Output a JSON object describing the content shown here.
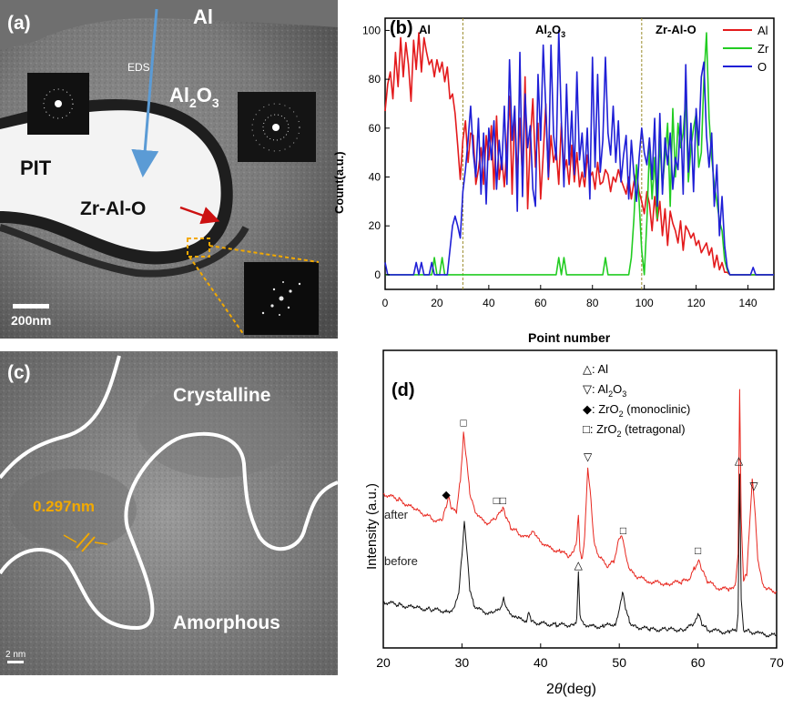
{
  "panels": {
    "a": {
      "tag": "(a)",
      "labels": {
        "al": "Al",
        "al2o3_main": "Al",
        "al2o3_sub": "2",
        "al2o3_o": "O",
        "al2o3_sub2": "3",
        "pit": "PIT",
        "zr": "Zr-Al-O",
        "eds": "EDS"
      },
      "scale_bar": "200nm"
    },
    "c": {
      "tag": "(c)",
      "crystalline": "Crystalline",
      "amorphous": "Amorphous",
      "spacing": "0.297nm",
      "scale_bar": "2 nm"
    }
  },
  "colors": {
    "al": "#e31a1c",
    "zr": "#22cc22",
    "o": "#1f1fd6",
    "after": "#e8271f",
    "before": "#111111",
    "eds_arrow": "#5b9bd5",
    "accent_orange": "#f2a900"
  },
  "chart_data": [
    {
      "id": "b",
      "tag": "(b)",
      "type": "line",
      "xlabel": "Point number",
      "ylabel": "Count(a.u.)",
      "xlim": [
        0,
        150
      ],
      "ylim": [
        -6,
        105
      ],
      "xticks": [
        0,
        20,
        40,
        60,
        80,
        100,
        120,
        140
      ],
      "yticks": [
        0,
        20,
        40,
        60,
        80,
        100
      ],
      "region_dividers": [
        30,
        99
      ],
      "region_labels": {
        "al": "Al",
        "al2o3_main": "Al",
        "al2o3_sub": "2",
        "al2o3_o": "O",
        "al2o3_sub2": "3",
        "zr": "Zr-Al-O"
      },
      "legend": [
        "Al",
        "Zr",
        "O"
      ],
      "legend_position": "top-right",
      "series": [
        {
          "name": "Al",
          "values": [
            67,
            78,
            83,
            72,
            91,
            77,
            97,
            81,
            95,
            86,
            71,
            96,
            84,
            99,
            83,
            97,
            91,
            86,
            88,
            81,
            88,
            83,
            87,
            79,
            85,
            72,
            74,
            66,
            53,
            39,
            55,
            63,
            46,
            58,
            57,
            37,
            43,
            52,
            37,
            57,
            47,
            61,
            35,
            65,
            39,
            48,
            36,
            53,
            73,
            33,
            68,
            40,
            64,
            39,
            81,
            27,
            55,
            72,
            44,
            62,
            31,
            49,
            70,
            39,
            57,
            46,
            51,
            37,
            62,
            42,
            47,
            37,
            53,
            38,
            50,
            36,
            42,
            36,
            49,
            40,
            42,
            35,
            46,
            37,
            38,
            43,
            41,
            34,
            40,
            38,
            43,
            39,
            36,
            33,
            40,
            31,
            38,
            42,
            34,
            30,
            25,
            34,
            29,
            18,
            32,
            22,
            30,
            16,
            27,
            12,
            26,
            21,
            18,
            13,
            22,
            10,
            20,
            18,
            15,
            17,
            12,
            14,
            9,
            11,
            13,
            8,
            11,
            3,
            8,
            2,
            5,
            1,
            1,
            0,
            0,
            0,
            0,
            0,
            0,
            0,
            0,
            0,
            0,
            0,
            0,
            0,
            0,
            0,
            0,
            0,
            0
          ]
        },
        {
          "name": "Zr",
          "values": [
            0,
            0,
            0,
            0,
            0,
            0,
            0,
            0,
            0,
            0,
            0,
            0,
            0,
            0,
            0,
            0,
            0,
            0,
            0,
            7,
            0,
            0,
            7,
            0,
            0,
            0,
            0,
            0,
            0,
            0,
            0,
            0,
            0,
            0,
            0,
            0,
            0,
            0,
            0,
            0,
            0,
            0,
            0,
            0,
            0,
            0,
            0,
            0,
            0,
            0,
            0,
            0,
            0,
            0,
            0,
            0,
            0,
            0,
            0,
            0,
            0,
            0,
            0,
            0,
            0,
            0,
            0,
            7,
            0,
            7,
            0,
            0,
            0,
            0,
            0,
            0,
            0,
            0,
            0,
            0,
            0,
            0,
            0,
            0,
            0,
            7,
            0,
            0,
            0,
            0,
            0,
            0,
            0,
            0,
            0,
            7,
            23,
            45,
            30,
            10,
            0,
            22,
            52,
            31,
            48,
            23,
            55,
            36,
            48,
            62,
            28,
            68,
            40,
            62,
            52,
            58,
            72,
            38,
            52,
            60,
            66,
            44,
            50,
            80,
            99,
            64,
            48,
            37,
            30,
            22,
            18,
            6,
            2,
            0,
            0,
            0,
            0,
            0,
            0,
            0,
            0,
            0,
            0,
            0,
            0,
            0,
            0,
            0,
            0,
            0,
            0
          ]
        },
        {
          "name": "O",
          "values": [
            5,
            0,
            0,
            0,
            0,
            0,
            0,
            0,
            0,
            0,
            0,
            0,
            5,
            0,
            5,
            0,
            0,
            0,
            5,
            0,
            0,
            0,
            0,
            0,
            0,
            10,
            20,
            24,
            20,
            15,
            34,
            43,
            55,
            69,
            50,
            40,
            64,
            33,
            58,
            29,
            60,
            47,
            63,
            35,
            55,
            43,
            69,
            37,
            88,
            55,
            69,
            26,
            91,
            32,
            74,
            52,
            61,
            35,
            28,
            82,
            55,
            94,
            68,
            40,
            94,
            57,
            47,
            100,
            63,
            36,
            78,
            45,
            67,
            41,
            83,
            47,
            58,
            40,
            60,
            31,
            89,
            44,
            82,
            42,
            55,
            89,
            58,
            49,
            69,
            46,
            63,
            38,
            49,
            57,
            31,
            55,
            41,
            30,
            48,
            60,
            50,
            45,
            56,
            39,
            64,
            28,
            66,
            33,
            56,
            45,
            58,
            35,
            48,
            43,
            65,
            33,
            86,
            42,
            62,
            34,
            68,
            53,
            81,
            87,
            57,
            44,
            58,
            28,
            45,
            16,
            32,
            12,
            3,
            0,
            0,
            0,
            0,
            0,
            0,
            0,
            0,
            0,
            3,
            0,
            0,
            0,
            0,
            0,
            0,
            0,
            0
          ]
        }
      ]
    },
    {
      "id": "d",
      "tag": "(d)",
      "type": "line",
      "xlabel_prefix": "2",
      "xlabel_theta": "θ",
      "xlabel_suffix": "(deg)",
      "ylabel": "Intensity (a.u.)",
      "xlim": [
        20,
        70
      ],
      "xticks": [
        20,
        30,
        40,
        50,
        60,
        70
      ],
      "legend_items": [
        {
          "symbol": "△",
          "text": ": Al",
          "sub": ""
        },
        {
          "symbol": "▽",
          "text": ": Al",
          "sub": "2",
          "tail": "O",
          "sub2": "3"
        },
        {
          "symbol": "◆",
          "text": ": ZrO",
          "sub": "2",
          "tail": " (monoclinic)"
        },
        {
          "symbol": "□",
          "text": ": ZrO",
          "sub": "2",
          "tail": " (tetragonal)"
        }
      ],
      "series": [
        {
          "name": "after",
          "x": [
            20,
            22,
            24,
            25,
            26,
            27,
            27.5,
            28,
            28.3,
            28.7,
            29.3,
            29.8,
            30.2,
            30.6,
            31.0,
            31.6,
            32.5,
            33.5,
            34.3,
            34.8,
            35.2,
            35.6,
            36.2,
            37.0,
            38.0,
            38.6,
            39.2,
            39.8,
            41.0,
            42.5,
            43.5,
            44.2,
            44.6,
            44.8,
            45.0,
            45.3,
            45.6,
            46.0,
            46.4,
            46.8,
            47.5,
            48.5,
            49.3,
            49.8,
            50.2,
            50.6,
            51.0,
            51.5,
            52.5,
            54,
            56,
            58,
            59,
            59.6,
            60.1,
            60.6,
            61.2,
            62.5,
            64,
            64.8,
            65.1,
            65.3,
            65.5,
            65.8,
            66.2,
            66.6,
            66.9,
            67.2,
            67.6,
            68.2,
            69,
            70
          ],
          "values": [
            58,
            55,
            50,
            48,
            46,
            44,
            45,
            52,
            57,
            50,
            49,
            65,
            88,
            74,
            58,
            50,
            45,
            43,
            46,
            49,
            51,
            46,
            41,
            39,
            36,
            37,
            39,
            35,
            31,
            29,
            27,
            29,
            35,
            48,
            30,
            25,
            36,
            71,
            55,
            33,
            26,
            22,
            24,
            33,
            37,
            33,
            24,
            19,
            16,
            14,
            13,
            14,
            16,
            21,
            25,
            19,
            14,
            11,
            10,
            13,
            28,
            110,
            45,
            14,
            18,
            45,
            65,
            52,
            26,
            13,
            10,
            9
          ]
        },
        {
          "name": "before",
          "x": [
            20,
            22,
            24,
            26,
            28,
            29,
            29.6,
            30.0,
            30.3,
            30.6,
            31.0,
            31.5,
            32.5,
            34,
            35.0,
            35.3,
            35.7,
            37,
            38.2,
            38.5,
            38.9,
            40,
            42,
            44,
            44.6,
            44.8,
            45.0,
            45.4,
            46.5,
            48,
            49.5,
            50.0,
            50.4,
            50.8,
            51.3,
            52,
            54,
            56,
            58,
            59.5,
            60.0,
            60.5,
            61.2,
            62.5,
            64,
            64.9,
            65.1,
            65.3,
            65.5,
            65.8,
            66.5,
            68,
            70
          ],
          "values": [
            24,
            22,
            20,
            19,
            18,
            19,
            30,
            55,
            76,
            58,
            32,
            22,
            18,
            16,
            21,
            27,
            19,
            13,
            12,
            18,
            11,
            10,
            9,
            9,
            12,
            43,
            16,
            10,
            8,
            8,
            10,
            19,
            30,
            20,
            11,
            8,
            6,
            6,
            6,
            9,
            16,
            10,
            6,
            5,
            4,
            6,
            16,
            105,
            25,
            6,
            5,
            3,
            2
          ]
        }
      ],
      "series_labels": {
        "after": "after",
        "before": "before"
      },
      "peak_markers": {
        "after": [
          {
            "x": 28.0,
            "symbol": "◆"
          },
          {
            "x": 30.2,
            "symbol": "□"
          },
          {
            "x": 34.8,
            "symbol": "□□"
          },
          {
            "x": 44.8,
            "symbol": "△"
          },
          {
            "x": 46.0,
            "symbol": "▽"
          },
          {
            "x": 50.5,
            "symbol": "□"
          },
          {
            "x": 60.0,
            "symbol": "□"
          },
          {
            "x": 65.2,
            "symbol": "△"
          },
          {
            "x": 67.1,
            "symbol": "▽"
          }
        ]
      }
    }
  ]
}
